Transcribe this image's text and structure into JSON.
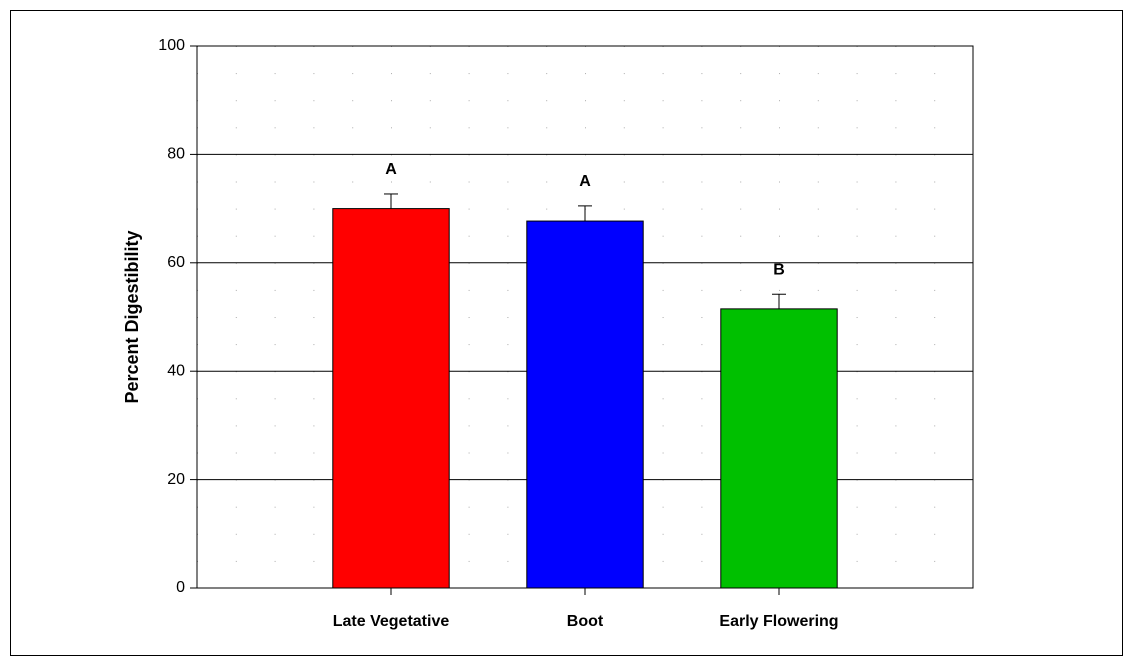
{
  "chart_data": {
    "type": "bar",
    "ylabel": "Percent Digestibility",
    "categories": [
      "Late Vegetative",
      "Boot",
      "Early Flowering"
    ],
    "values": [
      70,
      67.7,
      51.5
    ],
    "errors": [
      2.7,
      2.8,
      2.7
    ],
    "annotations": [
      "A",
      "A",
      "B"
    ],
    "colors": [
      "#ff0000",
      "#0000ff",
      "#00c000"
    ],
    "ylim": [
      0,
      100
    ],
    "yticks": [
      0,
      20,
      40,
      60,
      80,
      100
    ],
    "grid": true
  }
}
